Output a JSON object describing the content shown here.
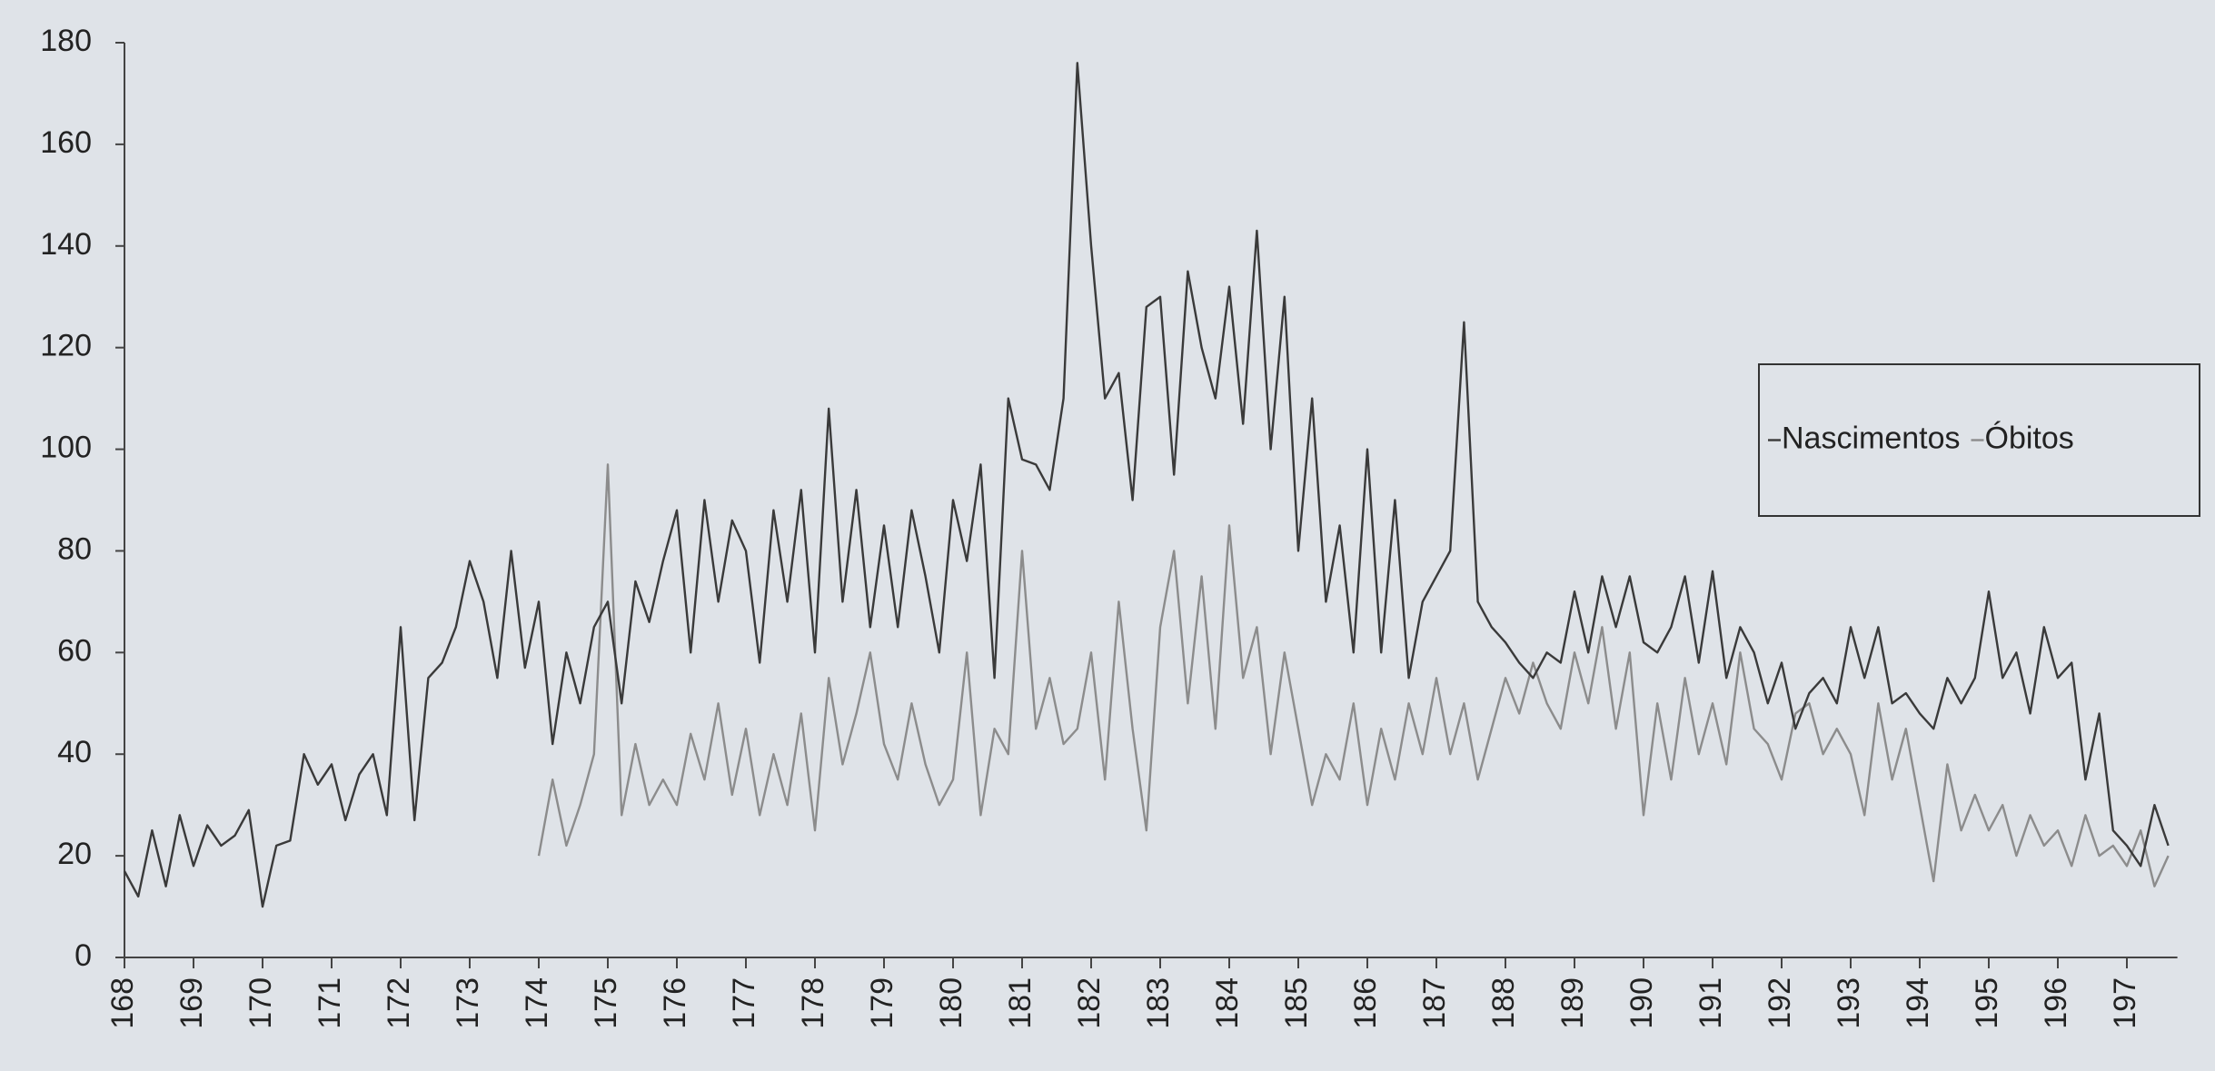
{
  "chart_data": {
    "type": "line",
    "categories": [
      "168",
      null,
      null,
      null,
      null,
      "169",
      null,
      null,
      null,
      null,
      "170",
      null,
      null,
      null,
      null,
      "171",
      null,
      null,
      null,
      null,
      "172",
      null,
      null,
      null,
      null,
      "173",
      null,
      null,
      null,
      null,
      "174",
      null,
      null,
      null,
      null,
      "175",
      null,
      null,
      null,
      null,
      "176",
      null,
      null,
      null,
      null,
      "177",
      null,
      null,
      null,
      null,
      "178",
      null,
      null,
      null,
      null,
      "179",
      null,
      null,
      null,
      null,
      "180",
      null,
      null,
      null,
      null,
      "181",
      null,
      null,
      null,
      null,
      "182",
      null,
      null,
      null,
      null,
      "183",
      null,
      null,
      null,
      null,
      "184",
      null,
      null,
      null,
      null,
      "185",
      null,
      null,
      null,
      null,
      "186",
      null,
      null,
      null,
      null,
      "187",
      null,
      null,
      null,
      null,
      "188",
      null,
      null,
      null,
      null,
      "189",
      null,
      null,
      null,
      null,
      "190",
      null,
      null,
      null,
      null,
      "191",
      null,
      null,
      null,
      null,
      "192",
      null,
      null,
      null,
      null,
      "193",
      null,
      null,
      null,
      null,
      "194",
      null,
      null,
      null,
      null,
      "195",
      null,
      null,
      null,
      null,
      "196",
      null,
      null,
      null,
      null,
      "197",
      null,
      null,
      null
    ],
    "series": [
      {
        "name": "Nascimentos",
        "color": "#3a3a3a",
        "values": [
          17,
          12,
          25,
          14,
          28,
          18,
          26,
          22,
          24,
          29,
          10,
          22,
          23,
          40,
          34,
          38,
          27,
          36,
          40,
          28,
          65,
          27,
          55,
          58,
          65,
          78,
          70,
          55,
          80,
          57,
          70,
          42,
          60,
          50,
          65,
          70,
          50,
          74,
          66,
          78,
          88,
          60,
          90,
          70,
          86,
          80,
          58,
          88,
          70,
          92,
          60,
          108,
          70,
          92,
          65,
          85,
          65,
          88,
          75,
          60,
          90,
          78,
          97,
          55,
          110,
          98,
          97,
          92,
          110,
          176,
          140,
          110,
          115,
          90,
          128,
          130,
          95,
          135,
          120,
          110,
          132,
          105,
          143,
          100,
          130,
          80,
          110,
          70,
          85,
          60,
          100,
          60,
          90,
          55,
          70,
          75,
          80,
          125,
          70,
          65,
          62,
          58,
          55,
          60,
          58,
          72,
          60,
          75,
          65,
          75,
          62,
          60,
          65,
          75,
          58,
          76,
          55,
          65,
          60,
          50,
          58,
          45,
          52,
          55,
          50,
          65,
          55,
          65,
          50,
          52,
          48,
          45,
          55,
          50,
          55,
          72,
          55,
          60,
          48,
          65,
          55,
          58,
          35,
          48,
          25,
          22,
          18,
          30,
          22
        ]
      },
      {
        "name": "Óbitos",
        "color": "#8c8c8c",
        "values": [
          null,
          null,
          null,
          null,
          null,
          null,
          null,
          null,
          null,
          null,
          null,
          null,
          null,
          null,
          null,
          null,
          null,
          null,
          null,
          null,
          null,
          null,
          null,
          null,
          null,
          null,
          null,
          null,
          null,
          null,
          20,
          35,
          22,
          30,
          40,
          97,
          28,
          42,
          30,
          35,
          30,
          44,
          35,
          50,
          32,
          45,
          28,
          40,
          30,
          48,
          25,
          55,
          38,
          48,
          60,
          42,
          35,
          50,
          38,
          30,
          35,
          60,
          28,
          45,
          40,
          80,
          45,
          55,
          42,
          45,
          60,
          35,
          70,
          45,
          25,
          65,
          80,
          50,
          75,
          45,
          85,
          55,
          65,
          40,
          60,
          45,
          30,
          40,
          35,
          50,
          30,
          45,
          35,
          50,
          40,
          55,
          40,
          50,
          35,
          45,
          55,
          48,
          58,
          50,
          45,
          60,
          50,
          65,
          45,
          60,
          28,
          50,
          35,
          55,
          40,
          50,
          38,
          60,
          45,
          42,
          35,
          48,
          50,
          40,
          45,
          40,
          28,
          50,
          35,
          45,
          30,
          15,
          38,
          25,
          32,
          25,
          30,
          20,
          28,
          22,
          25,
          18,
          28,
          20,
          22,
          18,
          25,
          14,
          20
        ]
      }
    ],
    "ylim": [
      0,
      180
    ],
    "yticks": [
      0,
      20,
      40,
      60,
      80,
      100,
      120,
      140,
      160,
      180
    ],
    "legend": "right",
    "grid": false
  }
}
